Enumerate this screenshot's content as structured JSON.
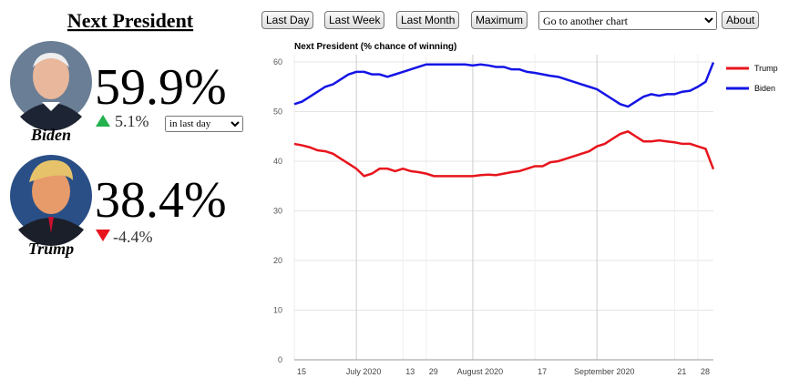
{
  "header": {
    "title": "Next President"
  },
  "candidates": [
    {
      "name": "Biden",
      "value": "59.9%",
      "change": "5.1%",
      "period": "in last day"
    },
    {
      "name": "Trump",
      "value": "38.4%",
      "change": "-4.4%"
    }
  ],
  "nav": {
    "buttons": [
      "Last Day",
      "Last Week",
      "Last Month",
      "Maximum"
    ],
    "select": "Go to another chart",
    "about": "About"
  },
  "chart_data": {
    "type": "line",
    "title": "Next President (% chance of winning)",
    "categories": [
      "15",
      null,
      null,
      null,
      null,
      null,
      null,
      null,
      "July 2020",
      null,
      null,
      null,
      null,
      null,
      "13",
      null,
      null,
      "29",
      null,
      null,
      null,
      null,
      null,
      "August 2020",
      null,
      null,
      null,
      null,
      null,
      null,
      null,
      "17",
      null,
      null,
      null,
      null,
      null,
      null,
      null,
      "September 2020",
      null,
      null,
      null,
      null,
      null,
      null,
      null,
      null,
      null,
      "21",
      null,
      null,
      "28",
      null,
      null
    ],
    "series": [
      {
        "name": "Trump",
        "color": "#e8141c",
        "values": [
          43.5,
          43.2,
          42.8,
          42.2,
          42,
          41.5,
          40.5,
          39.5,
          38.5,
          37,
          37.5,
          38.5,
          38.5,
          38,
          38.5,
          38,
          37.8,
          37.5,
          37,
          37,
          37,
          37,
          37,
          37,
          37.2,
          37.3,
          37.2,
          37.5,
          37.8,
          38,
          38.5,
          39,
          39,
          39.8,
          40,
          40.5,
          41,
          41.5,
          42,
          43,
          43.5,
          44.5,
          45.5,
          46,
          45,
          44,
          44,
          44.2,
          44,
          43.8,
          43.5,
          43.5,
          43,
          42.5,
          38.4
        ]
      },
      {
        "name": "Biden",
        "color": "#1414e6",
        "values": [
          51.5,
          52,
          53,
          54,
          55,
          55.5,
          56.5,
          57.5,
          58,
          58,
          57.5,
          57.5,
          57,
          57.5,
          58,
          58.5,
          59,
          59.5,
          59.5,
          59.5,
          59.5,
          59.5,
          59.5,
          59.3,
          59.5,
          59.3,
          59,
          59,
          58.5,
          58.5,
          58,
          57.8,
          57.5,
          57.2,
          57,
          56.5,
          56,
          55.5,
          55,
          54.5,
          53.5,
          52.5,
          51.5,
          51,
          52,
          53,
          53.5,
          53.2,
          53.5,
          53.5,
          54,
          54.2,
          55,
          56,
          59.9
        ]
      }
    ],
    "ylim": [
      0,
      60
    ],
    "yticks": [
      0,
      10,
      20,
      30,
      40,
      50,
      60
    ],
    "grid": true,
    "legend": "top-right"
  }
}
